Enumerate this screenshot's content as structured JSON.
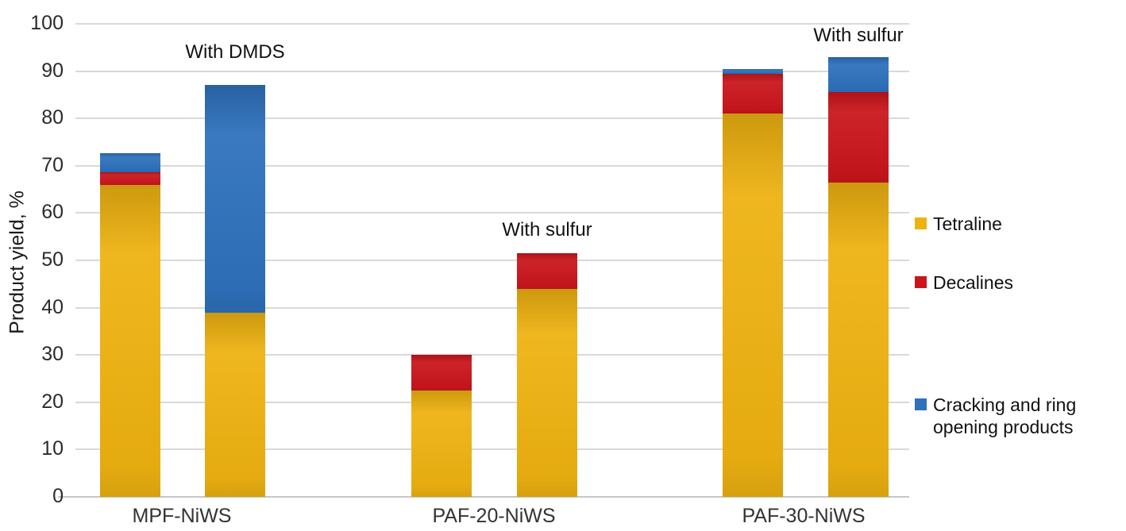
{
  "chart_data": {
    "type": "bar",
    "stacked": true,
    "title": "",
    "xlabel": "",
    "ylabel": "Product yield, %",
    "ylim": [
      0,
      100
    ],
    "ytick_labels": [
      "0",
      "10",
      "20",
      "30",
      "40",
      "50",
      "60",
      "70",
      "80",
      "90",
      "100"
    ],
    "grid": "horizontal",
    "legend_position": "right",
    "categories": [
      "MPF-NiWS",
      "PAF-20-NiWS",
      "PAF-30-NiWS"
    ],
    "bars_per_category": 2,
    "series": [
      {
        "name": "Tetraline",
        "color": "#EEB211",
        "values": [
          66,
          39,
          22.5,
          44,
          81,
          66.5
        ]
      },
      {
        "name": "Decalines",
        "color": "#C9161C",
        "values": [
          2.7,
          0,
          7.5,
          7.5,
          8.5,
          19
        ]
      },
      {
        "name": "Cracking and ring opening products",
        "color": "#2E71BC",
        "values": [
          4,
          48,
          0,
          0,
          1,
          7.5
        ]
      }
    ],
    "bar_totals": [
      72.7,
      87,
      30,
      51.5,
      90.5,
      93
    ],
    "annotations": [
      {
        "text": "With DMDS",
        "bar_index": 1
      },
      {
        "text": "With sulfur",
        "bar_index": 3
      },
      {
        "text": "With sulfur",
        "bar_index": 5
      }
    ]
  }
}
